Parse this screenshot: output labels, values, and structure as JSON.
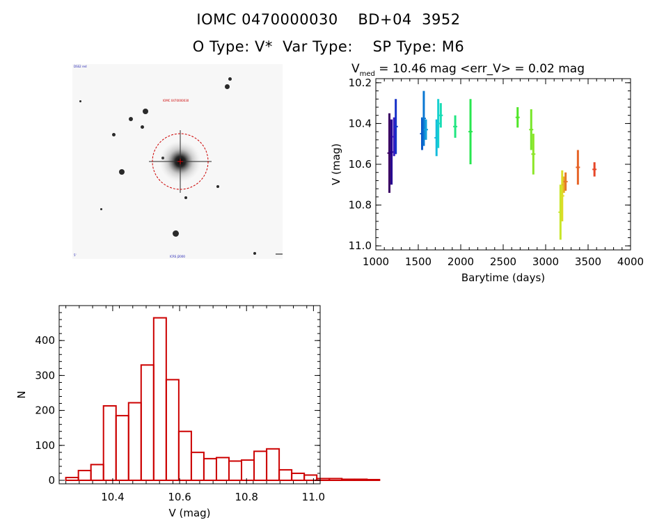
{
  "header": {
    "line1": "IOMC 0470000030    BD+04  3952",
    "line2": "O Type: V*  Var Type:    SP Type: M6"
  },
  "finder_chart": {
    "corner_label_tl": "DSS2 red",
    "corner_label_bl": "5'",
    "target_label": "IOMC 0470000030",
    "bottom_label": "ICRS J2000",
    "circle_color": "#cc0000"
  },
  "colors": {
    "hist": "#cc0000",
    "axis": "#000000"
  },
  "chart_data": [
    {
      "type": "scatter",
      "name": "light-curve",
      "title_main": "V",
      "title_sub": "med",
      "title_rest": " = 10.46 mag <err_V> = 0.02 mag",
      "xlabel": "Barytime (days)",
      "ylabel": "V (mag)",
      "xlim": [
        1000,
        4000
      ],
      "ylim": [
        11.02,
        10.18
      ],
      "xticks": [
        1000,
        1500,
        2000,
        2500,
        3000,
        3500,
        4000
      ],
      "yticks": [
        10.2,
        10.4,
        10.6,
        10.8,
        11.0
      ],
      "ytick_labels": [
        "10.2",
        "10.4",
        "10.6",
        "10.8",
        "11.0"
      ],
      "series": [
        {
          "name": "s1",
          "color": "#3a0063",
          "x": 1160,
          "min": 10.35,
          "max": 10.74
        },
        {
          "name": "s2",
          "color": "#24008e",
          "x": 1185,
          "min": 10.38,
          "max": 10.7
        },
        {
          "name": "s3",
          "color": "#3a1ac0",
          "x": 1215,
          "min": 10.37,
          "max": 10.56
        },
        {
          "name": "s4",
          "color": "#1530c8",
          "x": 1235,
          "min": 10.28,
          "max": 10.55
        },
        {
          "name": "s5",
          "color": "#0a5ac8",
          "x": 1545,
          "min": 10.37,
          "max": 10.53
        },
        {
          "name": "s6",
          "color": "#0a78d2",
          "x": 1565,
          "min": 10.24,
          "max": 10.51
        },
        {
          "name": "s7",
          "color": "#12a0dc",
          "x": 1590,
          "min": 10.38,
          "max": 10.48
        },
        {
          "name": "s8",
          "color": "#14bcdc",
          "x": 1715,
          "min": 10.38,
          "max": 10.56
        },
        {
          "name": "s9",
          "color": "#16d0d0",
          "x": 1735,
          "min": 10.28,
          "max": 10.52
        },
        {
          "name": "s10",
          "color": "#18dcb4",
          "x": 1765,
          "min": 10.3,
          "max": 10.42
        },
        {
          "name": "s11",
          "color": "#20e680",
          "x": 1935,
          "min": 10.36,
          "max": 10.47
        },
        {
          "name": "s12",
          "color": "#28e650",
          "x": 2115,
          "min": 10.28,
          "max": 10.6
        },
        {
          "name": "s13",
          "color": "#50e628",
          "x": 2670,
          "min": 10.32,
          "max": 10.42
        },
        {
          "name": "s14",
          "color": "#78e628",
          "x": 2830,
          "min": 10.33,
          "max": 10.53
        },
        {
          "name": "s15",
          "color": "#8ce628",
          "x": 2855,
          "min": 10.45,
          "max": 10.65
        },
        {
          "name": "s16",
          "color": "#c8e628",
          "x": 3175,
          "min": 10.7,
          "max": 10.97
        },
        {
          "name": "s17",
          "color": "#dcdc28",
          "x": 3195,
          "min": 10.63,
          "max": 10.88
        },
        {
          "name": "s18",
          "color": "#e6b428",
          "x": 3215,
          "min": 10.66,
          "max": 10.74
        },
        {
          "name": "s19",
          "color": "#e67828",
          "x": 3235,
          "min": 10.64,
          "max": 10.73
        },
        {
          "name": "s20",
          "color": "#e66428",
          "x": 3380,
          "min": 10.53,
          "max": 10.7
        },
        {
          "name": "s21",
          "color": "#e64628",
          "x": 3575,
          "min": 10.59,
          "max": 10.66
        }
      ]
    },
    {
      "type": "bar",
      "name": "histogram",
      "xlabel": "V (mag)",
      "ylabel": "N",
      "xlim": [
        10.24,
        11.02
      ],
      "ylim": [
        -10,
        500
      ],
      "xticks": [
        10.4,
        10.6,
        10.8,
        11.0
      ],
      "xtick_labels": [
        "10.4",
        "10.6",
        "10.8",
        "11.0"
      ],
      "yticks": [
        0,
        100,
        200,
        300,
        400
      ],
      "bin_start": 10.26,
      "bin_width": 0.0375,
      "values": [
        8,
        28,
        45,
        213,
        185,
        222,
        330,
        465,
        288,
        140,
        80,
        62,
        65,
        55,
        58,
        83,
        90,
        30,
        20,
        15,
        5,
        5,
        3,
        3,
        2
      ]
    }
  ]
}
